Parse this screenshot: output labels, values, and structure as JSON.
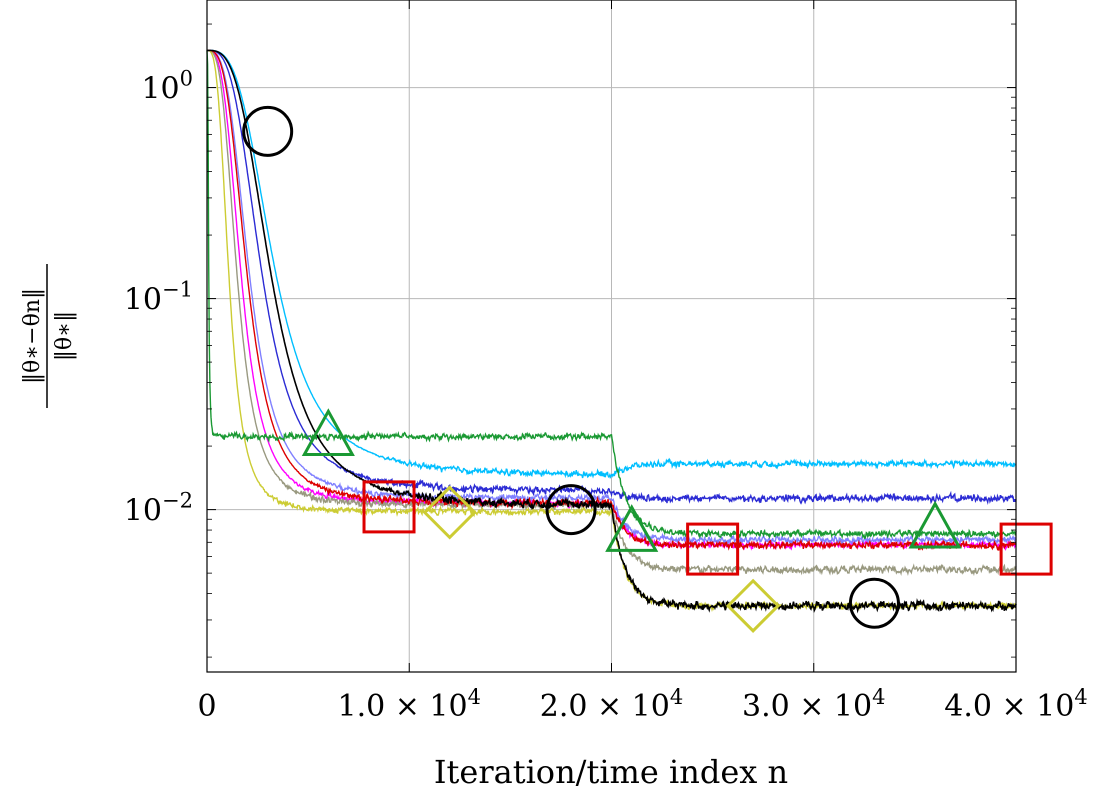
{
  "chart_data": {
    "type": "line",
    "title": "",
    "xlabel": "Iteration/time index n",
    "ylabel": {
      "numerator": "‖θ∗−θn‖",
      "denominator": "‖θ∗‖"
    },
    "xlim": [
      0,
      40000
    ],
    "ylim": [
      0.0017,
      2.6
    ],
    "y_scale": "log",
    "grid": true,
    "legend": "none",
    "x_ticks": [
      0,
      10000,
      20000,
      30000,
      40000
    ],
    "x_tick_labels": [
      {
        "mant": "0",
        "exp": ""
      },
      {
        "mant": "1.0 × 10",
        "exp": "4"
      },
      {
        "mant": "2.0 × 10",
        "exp": "4"
      },
      {
        "mant": "3.0 × 10",
        "exp": "4"
      },
      {
        "mant": "4.0 × 10",
        "exp": "4"
      }
    ],
    "y_ticks": [
      1,
      0.1,
      0.01
    ],
    "y_tick_labels": [
      {
        "mant": "10",
        "exp": "0"
      },
      {
        "mant": "10",
        "exp": "−1"
      },
      {
        "mant": "10",
        "exp": "−2"
      }
    ],
    "series": [
      {
        "color": "#ff00ff",
        "start": 1.5,
        "t_half": 1700,
        "plateau1": 0.0107,
        "plateau2": 0.0068,
        "noise": 0.03,
        "marker": "none"
      },
      {
        "color": "#00bfff",
        "start": 1.5,
        "t_half": 3300,
        "plateau1": 0.0145,
        "plateau2": 0.0165,
        "noise": 0.03,
        "marker": "none"
      },
      {
        "color": "#2b2bd4",
        "start": 1.5,
        "t_half": 2700,
        "plateau1": 0.0122,
        "plateau2": 0.0113,
        "noise": 0.035,
        "marker": "none"
      },
      {
        "color": "#999980",
        "start": 1.5,
        "t_half": 1500,
        "plateau1": 0.0105,
        "plateau2": 0.0052,
        "noise": 0.035,
        "marker": "none"
      },
      {
        "color": "#8080ff",
        "start": 1.5,
        "t_half": 2100,
        "plateau1": 0.0113,
        "plateau2": 0.0072,
        "noise": 0.03,
        "marker": "none"
      },
      {
        "color": "#dd0000",
        "start": 1.5,
        "t_half": 2000,
        "plateau1": 0.0107,
        "plateau2": 0.0068,
        "noise": 0.035,
        "marker": "square",
        "marker_points": [
          [
            9000,
            0.0103
          ],
          [
            25000,
            0.0065
          ],
          [
            40500,
            0.0065
          ]
        ]
      },
      {
        "color": "#cccc33",
        "start": 1.5,
        "t_half": 1100,
        "plateau1": 0.0098,
        "plateau2": 0.0035,
        "noise": 0.03,
        "marker": "diamond",
        "marker_points": [
          [
            12000,
            0.0097
          ],
          [
            27000,
            0.0035
          ]
        ]
      },
      {
        "color": "#1a9933",
        "start": 1.5,
        "t_half": 80,
        "plateau1": 0.0222,
        "plateau2": 0.0077,
        "noise": 0.03,
        "marker": "triangle",
        "marker_points": [
          [
            6000,
            0.0225
          ],
          [
            21000,
            0.0079
          ],
          [
            36000,
            0.0082
          ]
        ]
      },
      {
        "color": "#000000",
        "start": 1.5,
        "t_half": 3200,
        "plateau1": 0.0104,
        "plateau2": 0.0035,
        "noise": 0.04,
        "marker": "circle",
        "marker_points": [
          [
            3000,
            0.62
          ],
          [
            18000,
            0.01
          ],
          [
            33000,
            0.0036
          ]
        ]
      }
    ]
  }
}
